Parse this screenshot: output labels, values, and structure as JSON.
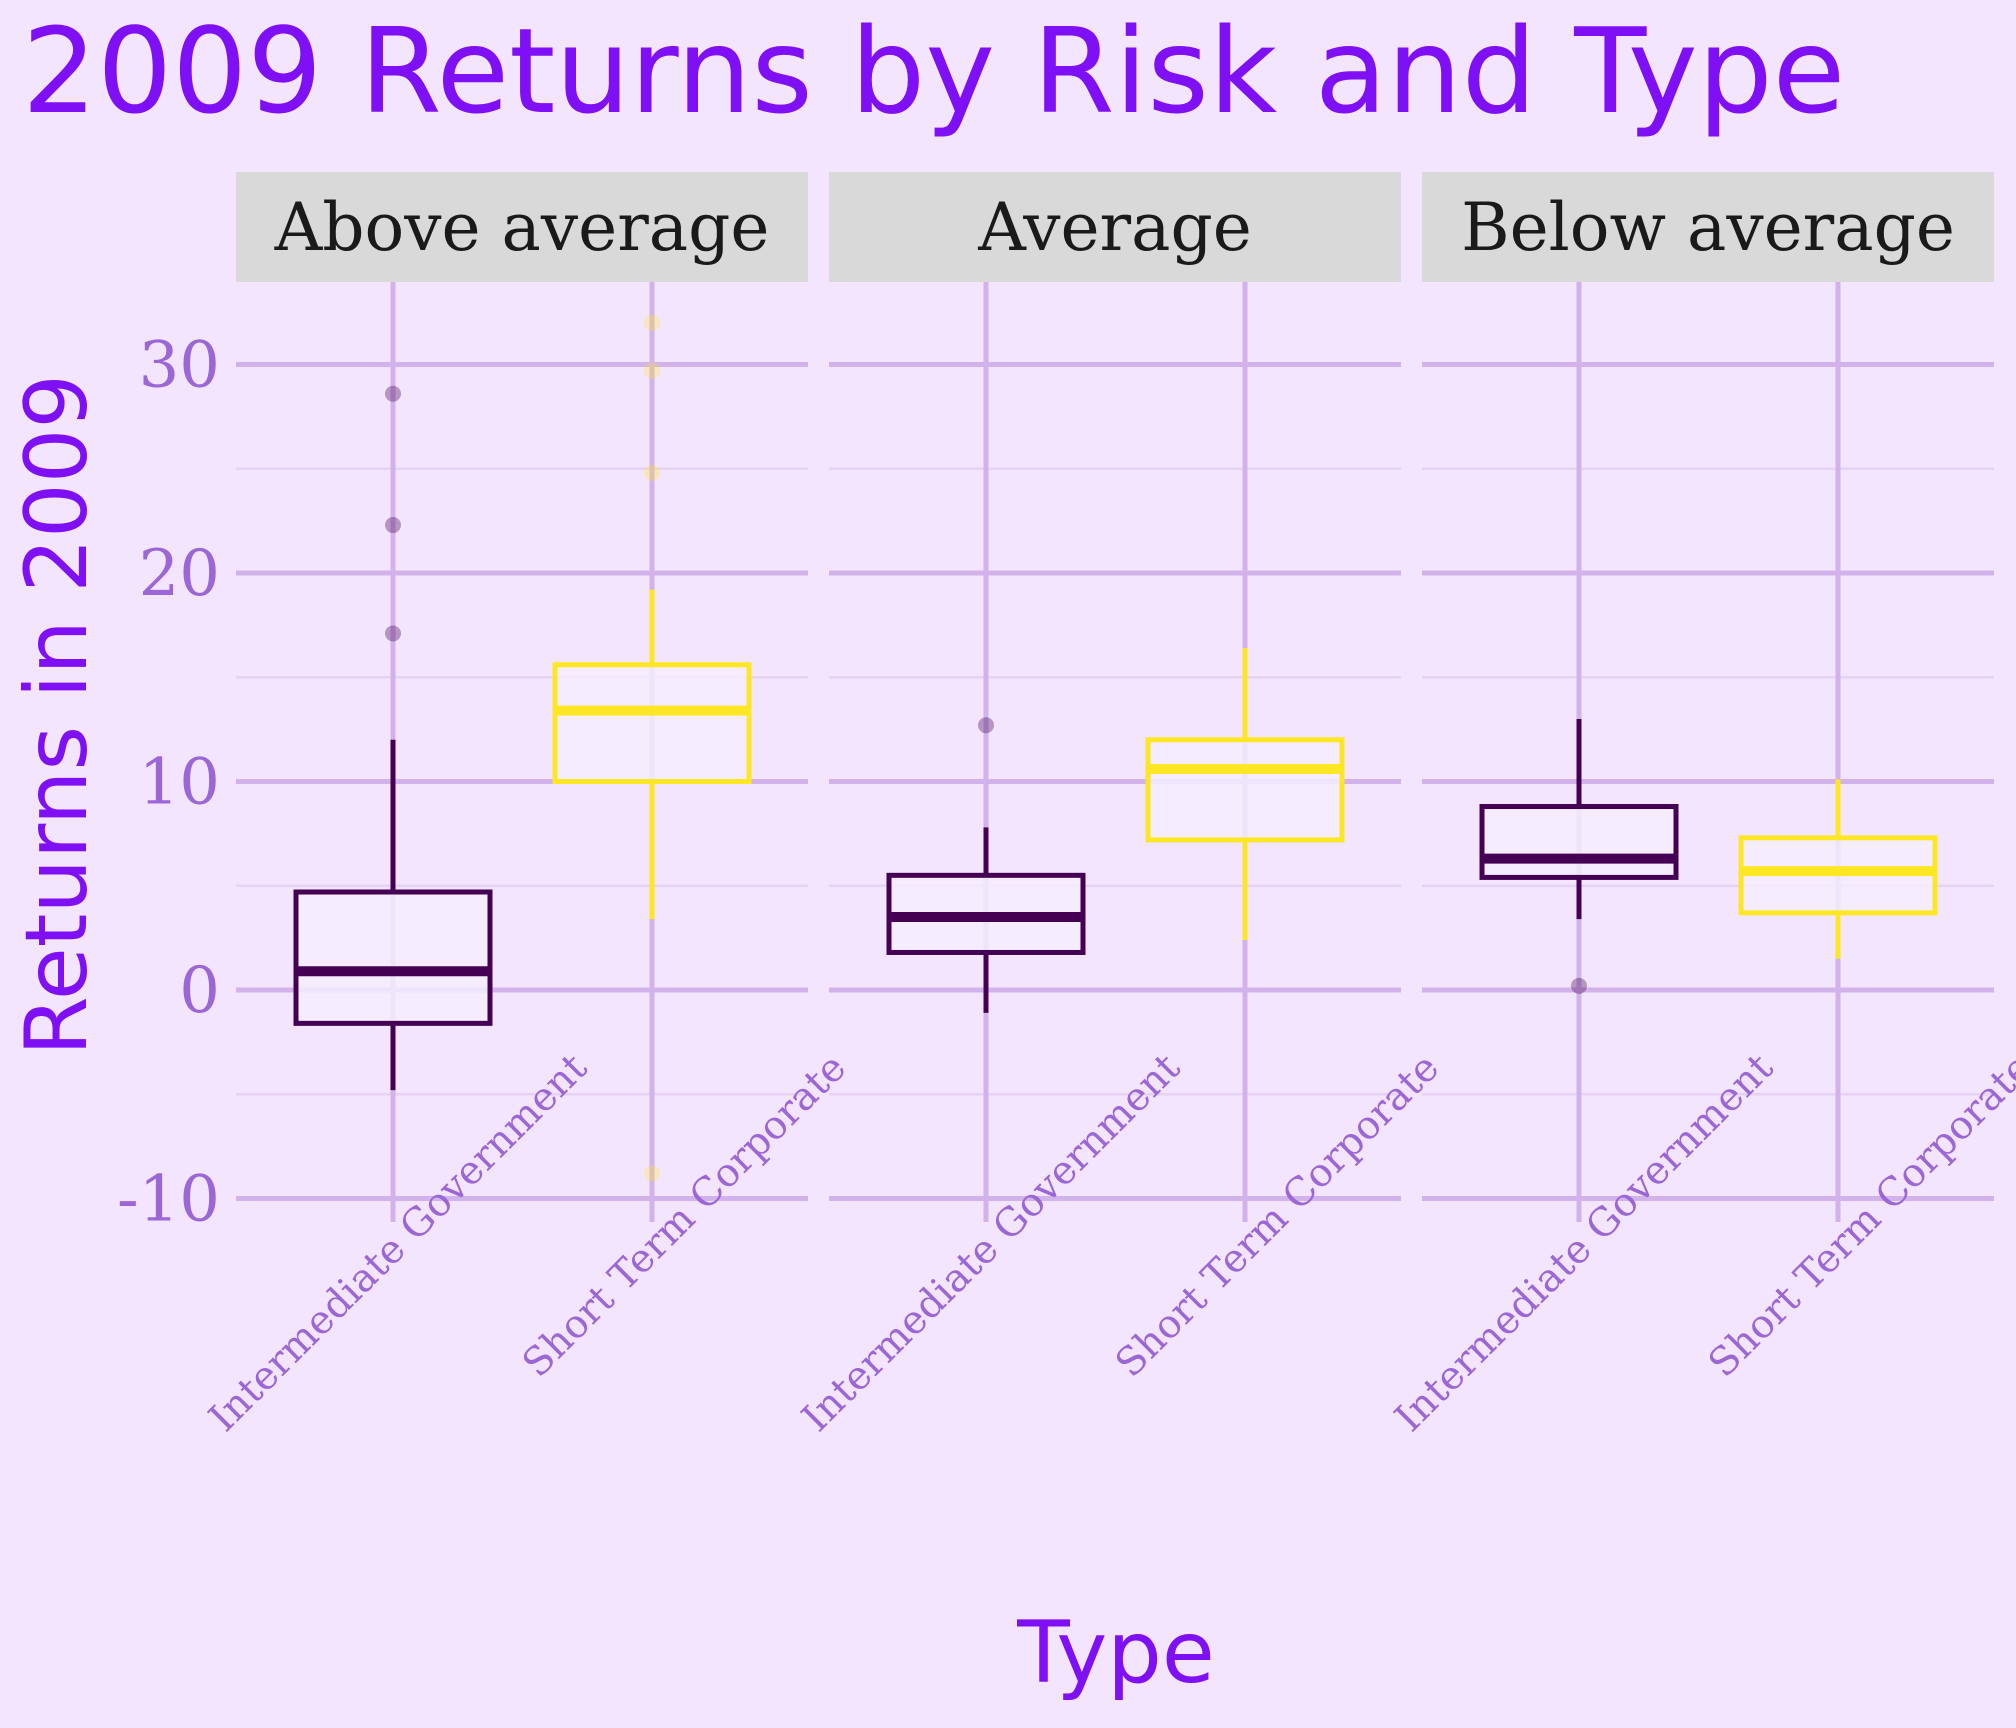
{
  "chart_data": {
    "type": "boxplot",
    "title": "2009 Returns by Risk and Type",
    "xlabel": "Type",
    "ylabel": "Returns in 2009",
    "ylim": [
      -10.5,
      32.5
    ],
    "yticks": [
      -10,
      0,
      10,
      20,
      30
    ],
    "grid": true,
    "legend": "none",
    "categories": [
      "Intermediate Government",
      "Short Term Corporate"
    ],
    "series_colors": {
      "Intermediate Government": "#440154",
      "Short Term Corporate": "#FDE725"
    },
    "panels": [
      {
        "label": "Above average",
        "boxes": [
          {
            "category": "Intermediate Government",
            "whisker_low": -4.8,
            "q1": -1.6,
            "median": 0.9,
            "q3": 4.7,
            "whisker_high": 12.0,
            "outliers": [
              17.1,
              22.3,
              28.6
            ]
          },
          {
            "category": "Short Term Corporate",
            "whisker_low": 3.4,
            "q1": 10.0,
            "median": 13.4,
            "q3": 15.6,
            "whisker_high": 19.2,
            "outliers": [
              -8.8,
              24.8,
              29.7,
              32.0
            ]
          }
        ]
      },
      {
        "label": "Average",
        "boxes": [
          {
            "category": "Intermediate Government",
            "whisker_low": -1.1,
            "q1": 1.8,
            "median": 3.5,
            "q3": 5.5,
            "whisker_high": 7.8,
            "outliers": [
              12.7
            ]
          },
          {
            "category": "Short Term Corporate",
            "whisker_low": 2.4,
            "q1": 7.2,
            "median": 10.6,
            "q3": 12.0,
            "whisker_high": 16.4,
            "outliers": []
          }
        ]
      },
      {
        "label": "Below average",
        "boxes": [
          {
            "category": "Intermediate Government",
            "whisker_low": 3.4,
            "q1": 5.4,
            "median": 6.3,
            "q3": 8.8,
            "whisker_high": 13.0,
            "outliers": [
              0.2
            ]
          },
          {
            "category": "Short Term Corporate",
            "whisker_low": 1.5,
            "q1": 3.7,
            "median": 5.7,
            "q3": 7.3,
            "whisker_high": 10.1,
            "outliers": []
          }
        ]
      }
    ]
  },
  "colors": {
    "background": "#F3E5FD",
    "title": "#7F0FF5",
    "tick_text": "#9B66D6",
    "grid_major": "#D2B2EA",
    "grid_minor": "#E6D2F4",
    "strip_fill": "#D9D9D9",
    "box_fill": "#F5EDFD"
  }
}
